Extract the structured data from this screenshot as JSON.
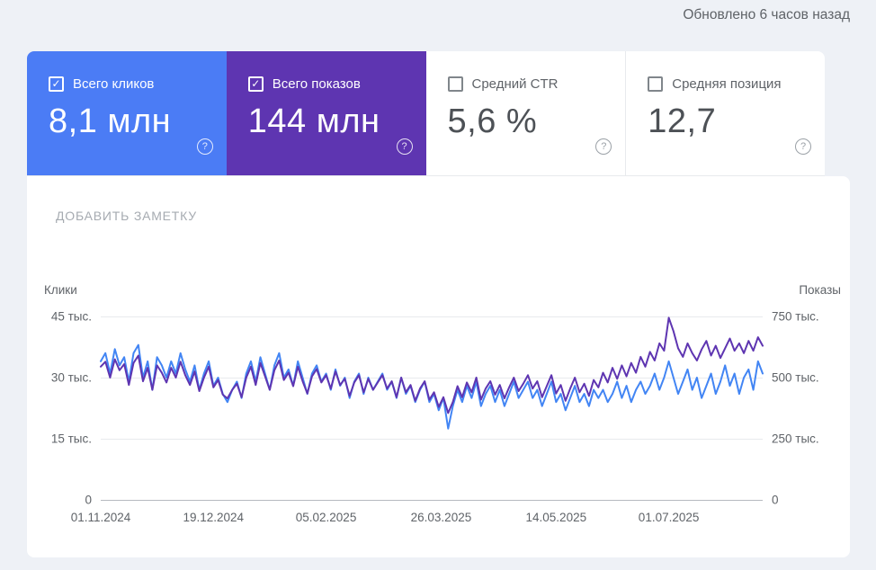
{
  "page": {
    "updated": "Обновлено 6 часов назад"
  },
  "icons": {
    "help": "?",
    "check": "✓"
  },
  "add_note": "ДОБАВИТЬ ЗАМЕТКУ",
  "cards": [
    {
      "label": "Всего кликов",
      "value": "8,1 млн",
      "checked": true,
      "bg": "#4b7cf5"
    },
    {
      "label": "Всего показов",
      "value": "144 млн",
      "checked": true,
      "bg": "#5e35b1"
    },
    {
      "label": "Средний CTR",
      "value": "5,6 %",
      "checked": false,
      "bg": "#ffffff"
    },
    {
      "label": "Средняя позиция",
      "value": "12,7",
      "checked": false,
      "bg": "#ffffff"
    }
  ],
  "chart_data": {
    "type": "line",
    "grid": "horizontal",
    "legend_position": "none",
    "left_axis": {
      "title": "Клики",
      "range": [
        0,
        45
      ],
      "ticks": [
        "45 тыс.",
        "30 тыс.",
        "15 тыс.",
        "0"
      ]
    },
    "right_axis": {
      "title": "Показы",
      "range": [
        0,
        750
      ],
      "ticks": [
        "750 тыс.",
        "500 тыс.",
        "250 тыс.",
        "0"
      ]
    },
    "x_ticks": {
      "labels": [
        "01.11.2024",
        "19.12.2024",
        "05.02.2025",
        "26.03.2025",
        "14.05.2025",
        "01.07.2025"
      ],
      "day_offsets": [
        0,
        48,
        96,
        145,
        194,
        242
      ],
      "total_days": 282
    },
    "series": [
      {
        "name": "Клики",
        "axis": "left",
        "color": "#4285f4",
        "unit": "тыс.",
        "values": [
          34,
          36,
          31,
          37,
          33,
          35,
          29,
          36,
          38,
          30,
          34,
          27,
          35,
          33,
          30,
          34,
          31,
          36,
          32,
          29,
          33,
          27,
          31,
          34,
          28,
          30,
          26,
          24,
          27,
          29,
          25,
          31,
          34,
          29,
          35,
          31,
          27,
          33,
          36,
          30,
          32,
          28,
          34,
          30,
          26,
          31,
          33,
          29,
          31,
          27,
          32,
          28,
          30,
          25,
          29,
          31,
          26,
          30,
          27,
          29,
          31,
          27,
          29,
          25,
          30,
          26,
          28,
          24,
          27,
          29,
          24,
          26,
          22,
          25,
          17.5,
          23,
          27,
          24,
          28,
          25,
          29,
          23,
          26,
          28,
          24,
          27,
          23,
          26,
          29,
          25,
          27,
          29,
          25,
          27,
          23,
          26,
          29,
          24,
          26,
          22,
          25,
          28,
          24,
          26,
          23,
          27,
          25,
          27,
          24,
          26,
          29,
          25,
          28,
          24,
          27,
          29,
          26,
          28,
          31,
          27,
          30,
          34,
          30,
          26,
          29,
          32,
          27,
          30,
          25,
          28,
          31,
          26,
          29,
          33,
          28,
          31,
          26,
          30,
          32,
          27,
          34,
          31
        ]
      },
      {
        "name": "Показы",
        "axis": "right",
        "color": "#5e35b1",
        "unit": "тыс.",
        "values": [
          545,
          565,
          500,
          575,
          530,
          555,
          470,
          560,
          590,
          485,
          540,
          450,
          550,
          520,
          480,
          540,
          500,
          565,
          510,
          470,
          525,
          445,
          500,
          545,
          460,
          490,
          430,
          415,
          450,
          475,
          420,
          500,
          545,
          470,
          560,
          505,
          450,
          530,
          570,
          490,
          520,
          465,
          545,
          485,
          435,
          505,
          535,
          480,
          510,
          455,
          525,
          470,
          495,
          425,
          480,
          510,
          440,
          495,
          450,
          480,
          510,
          455,
          485,
          420,
          500,
          440,
          470,
          405,
          455,
          485,
          410,
          440,
          380,
          420,
          355,
          400,
          465,
          420,
          480,
          440,
          500,
          410,
          455,
          485,
          430,
          470,
          415,
          460,
          500,
          445,
          475,
          510,
          455,
          485,
          420,
          465,
          510,
          435,
          470,
          405,
          455,
          500,
          440,
          475,
          425,
          490,
          460,
          520,
          480,
          540,
          495,
          550,
          505,
          560,
          520,
          585,
          545,
          605,
          570,
          640,
          610,
          745,
          690,
          620,
          585,
          640,
          600,
          570,
          615,
          650,
          590,
          630,
          580,
          620,
          660,
          610,
          640,
          600,
          650,
          610,
          665,
          630
        ]
      }
    ]
  }
}
